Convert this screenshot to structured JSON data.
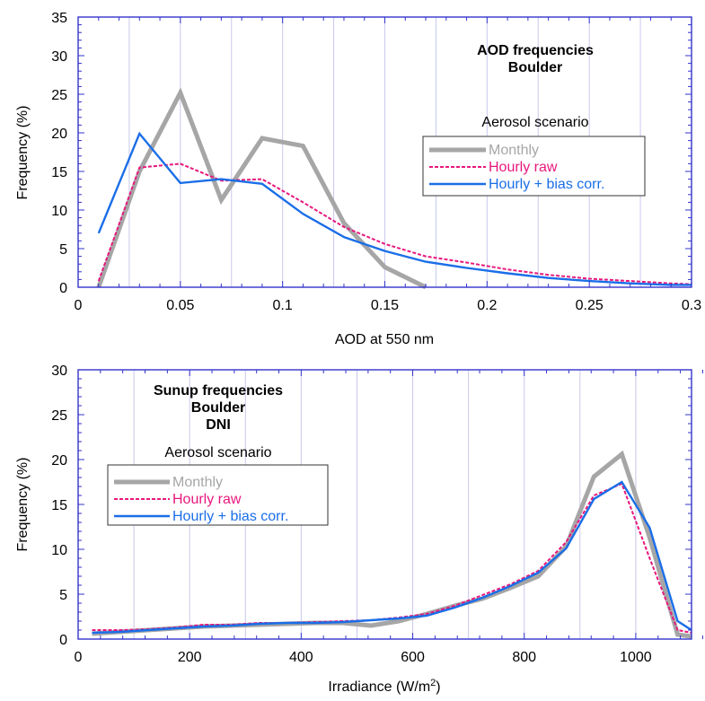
{
  "colors": {
    "frame": "#3333cc",
    "grid": "#c8c8ee",
    "monthly": "#a6a6a6",
    "hourly_raw": "#e8177d",
    "hourly_bias": "#1a6ee8",
    "text": "#000000"
  },
  "chart_data": [
    {
      "type": "line",
      "title": "AOD frequencies",
      "subtitle": "Boulder",
      "xlabel": "AOD at 550 nm",
      "ylabel": "Frequency (%)",
      "xlim": [
        0,
        0.3
      ],
      "ylim": [
        0,
        35
      ],
      "xticks": [
        0,
        0.05,
        0.1,
        0.15,
        0.2,
        0.25,
        0.3
      ],
      "xtick_labels": [
        "0",
        "0.05",
        "0.1",
        "0.15",
        "0.2",
        "0.25",
        "0.3"
      ],
      "yticks": [
        0,
        5,
        10,
        15,
        20,
        25,
        30,
        35
      ],
      "ytick_labels": [
        "0",
        "5",
        "10",
        "15",
        "20",
        "25",
        "30",
        "35"
      ],
      "grid": "vertical",
      "legend_title": "Aerosol scenario",
      "legend_position": "upper-right",
      "series": [
        {
          "name": "Monthly",
          "style": "monthly",
          "x": [
            0.01,
            0.03,
            0.05,
            0.07,
            0.09,
            0.11,
            0.13,
            0.15,
            0.17
          ],
          "y": [
            0,
            15,
            25.2,
            11.3,
            19.3,
            18.3,
            8.3,
            2.6,
            0
          ]
        },
        {
          "name": "Hourly raw",
          "style": "hourly_raw",
          "x": [
            0.01,
            0.03,
            0.05,
            0.07,
            0.09,
            0.11,
            0.13,
            0.15,
            0.17,
            0.19,
            0.21,
            0.23,
            0.25,
            0.27,
            0.29,
            0.3
          ],
          "y": [
            0.8,
            15.5,
            16,
            13.8,
            14,
            11,
            7.8,
            5.6,
            4,
            3.2,
            2.3,
            1.6,
            1.1,
            0.8,
            0.5,
            0.4
          ]
        },
        {
          "name": "Hourly + bias corr.",
          "style": "hourly_bias",
          "x": [
            0.01,
            0.03,
            0.05,
            0.07,
            0.09,
            0.11,
            0.13,
            0.15,
            0.17,
            0.19,
            0.21,
            0.23,
            0.25,
            0.27,
            0.29,
            0.3
          ],
          "y": [
            7,
            19.9,
            13.5,
            14,
            13.4,
            9.5,
            6.5,
            4.7,
            3.3,
            2.5,
            1.8,
            1.2,
            0.8,
            0.5,
            0.3,
            0.3
          ]
        }
      ]
    },
    {
      "type": "line",
      "title": "Sunup frequencies",
      "subtitle": "Boulder",
      "subtitle2": "DNI",
      "xlabel": "Irradiance (W/m",
      "xlabel_sup": "2",
      "xlabel_suffix": ")",
      "ylabel": "Frequency (%)",
      "xlim": [
        0,
        1100
      ],
      "ylim": [
        0,
        30
      ],
      "xticks": [
        0,
        200,
        400,
        600,
        800,
        1000
      ],
      "xtick_labels": [
        "0",
        "200",
        "400",
        "600",
        "800",
        "1000"
      ],
      "yticks": [
        0,
        5,
        10,
        15,
        20,
        25,
        30
      ],
      "ytick_labels": [
        "0",
        "5",
        "10",
        "15",
        "20",
        "25",
        "30"
      ],
      "grid": "vertical",
      "legend_title": "Aerosol scenario",
      "legend_position": "upper-left",
      "series": [
        {
          "name": "Monthly",
          "style": "monthly",
          "x": [
            25,
            75,
            125,
            175,
            225,
            275,
            325,
            375,
            425,
            475,
            525,
            575,
            625,
            675,
            725,
            775,
            825,
            875,
            925,
            975,
            1025,
            1075,
            1100
          ],
          "y": [
            0.6,
            0.8,
            1.0,
            1.2,
            1.4,
            1.5,
            1.6,
            1.7,
            1.8,
            1.8,
            1.5,
            2.0,
            2.8,
            3.7,
            4.5,
            5.7,
            7.0,
            10.3,
            18.1,
            20.6,
            11.3,
            0.5,
            0.3
          ]
        },
        {
          "name": "Hourly raw",
          "style": "hourly_raw",
          "x": [
            25,
            75,
            125,
            175,
            225,
            275,
            325,
            375,
            425,
            475,
            525,
            575,
            625,
            675,
            725,
            775,
            825,
            875,
            925,
            975,
            1025,
            1075,
            1100
          ],
          "y": [
            1.0,
            1.0,
            1.1,
            1.3,
            1.6,
            1.6,
            1.8,
            1.8,
            1.9,
            2.0,
            2.1,
            2.4,
            2.8,
            3.7,
            4.9,
            6.1,
            7.6,
            10.8,
            16.0,
            17.3,
            9.0,
            1.0,
            0.7
          ]
        },
        {
          "name": "Hourly + bias corr.",
          "style": "hourly_bias",
          "x": [
            25,
            75,
            125,
            175,
            225,
            275,
            325,
            375,
            425,
            475,
            525,
            575,
            625,
            675,
            725,
            775,
            825,
            875,
            925,
            975,
            1025,
            1075,
            1100
          ],
          "y": [
            0.7,
            0.8,
            1.0,
            1.2,
            1.4,
            1.5,
            1.7,
            1.8,
            1.8,
            1.9,
            2.1,
            2.3,
            2.6,
            3.5,
            4.6,
            5.9,
            7.4,
            10.1,
            15.6,
            17.5,
            12.4,
            2.0,
            1.0
          ]
        }
      ]
    }
  ]
}
